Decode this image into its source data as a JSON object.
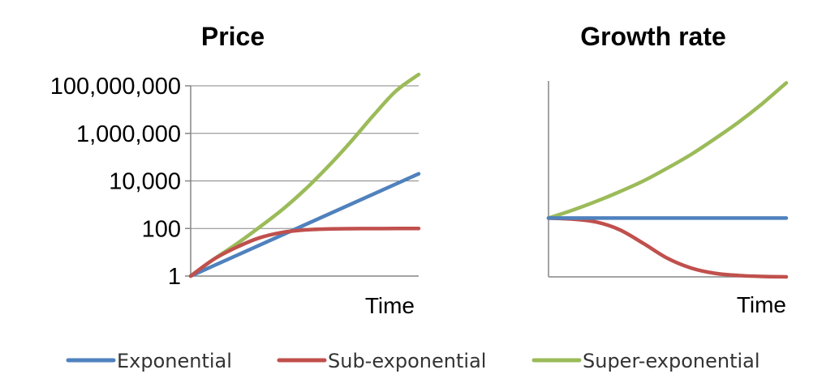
{
  "chart_data": [
    {
      "type": "line",
      "title": "Price",
      "xlabel": "Time",
      "ylabel": "",
      "y_scale": "log",
      "ylim": [
        1,
        100000000
      ],
      "xlim": [
        0,
        10
      ],
      "yticks": [
        {
          "value": 1,
          "label": "1"
        },
        {
          "value": 100,
          "label": "100"
        },
        {
          "value": 10000,
          "label": "10,000"
        },
        {
          "value": 1000000,
          "label": "1,000,000"
        },
        {
          "value": 100000000,
          "label": "100,000,000"
        }
      ],
      "grid": true,
      "series": [
        {
          "name": "Exponential",
          "color": "#4F81BD",
          "x": [
            0,
            10
          ],
          "y": [
            1,
            20000
          ]
        },
        {
          "name": "Sub-exponential",
          "color": "#C0504D",
          "x": [
            0,
            1,
            2,
            3,
            4,
            5,
            6,
            7,
            8,
            9,
            10
          ],
          "y": [
            1,
            5,
            16,
            40,
            68,
            87,
            95,
            98,
            99,
            99.5,
            100
          ]
        },
        {
          "name": "Super-exponential",
          "color": "#9BBB59",
          "x": [
            0,
            1,
            2,
            3,
            4,
            5,
            6,
            7,
            8,
            9,
            10
          ],
          "y": [
            1,
            5,
            22,
            110,
            600,
            4200,
            38000,
            420000,
            5500000,
            60000000,
            300000000
          ]
        }
      ]
    },
    {
      "type": "line",
      "title": "Growth rate",
      "xlabel": "Time",
      "ylabel": "",
      "ylim": [
        0,
        1
      ],
      "xlim": [
        0,
        10
      ],
      "grid": false,
      "series": [
        {
          "name": "Exponential",
          "color": "#4F81BD",
          "x": [
            0,
            10
          ],
          "y": [
            0.3,
            0.3
          ]
        },
        {
          "name": "Sub-exponential",
          "color": "#C0504D",
          "x": [
            0,
            1,
            2,
            3,
            4,
            5,
            6,
            7,
            8,
            9,
            10
          ],
          "y": [
            0.3,
            0.295,
            0.28,
            0.24,
            0.17,
            0.095,
            0.045,
            0.018,
            0.007,
            0.002,
            0
          ]
        },
        {
          "name": "Super-exponential",
          "color": "#9BBB59",
          "x": [
            0,
            1,
            2,
            3,
            4,
            5,
            6,
            7,
            8,
            9,
            10
          ],
          "y": [
            0.3,
            0.34,
            0.385,
            0.435,
            0.49,
            0.555,
            0.625,
            0.705,
            0.79,
            0.885,
            0.99
          ]
        }
      ]
    }
  ],
  "legend": {
    "placement": "bottom",
    "items": [
      {
        "name": "Exponential",
        "color": "#4F81BD"
      },
      {
        "name": "Sub-exponential",
        "color": "#C0504D"
      },
      {
        "name": "Super-exponential",
        "color": "#9BBB59"
      }
    ]
  }
}
